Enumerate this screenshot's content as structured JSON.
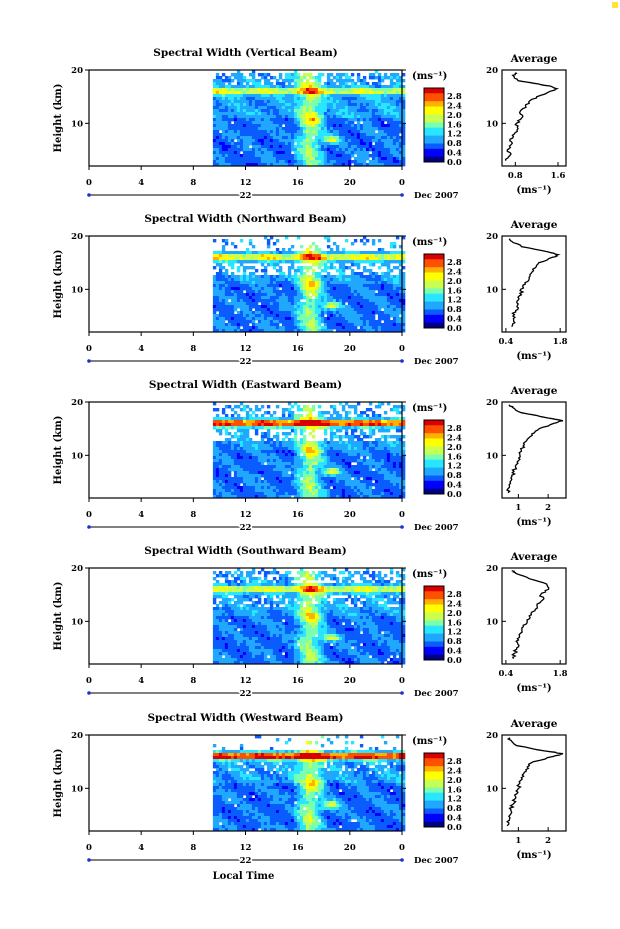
{
  "figure": {
    "bottom_xlabel": "Local Time",
    "colorbar_ticks": [
      "2.8",
      "2.4",
      "2.0",
      "1.6",
      "1.2",
      "0.8",
      "0.4",
      "0.0"
    ],
    "colorbar_unit": "(ms⁻¹)",
    "colormap": [
      "#000080",
      "#0000ff",
      "#0a5cff",
      "#20a8ff",
      "#28e6ff",
      "#7affb0",
      "#c8ff50",
      "#ffff00",
      "#ffb000",
      "#ff5000",
      "#d80000"
    ],
    "profile_title": "Average",
    "profile_unit": "(ms⁻¹)"
  },
  "chart_data": [
    {
      "type": "heatmap",
      "title": "Spectral Width (Vertical Beam)",
      "ylabel": "Height (km)",
      "yticks": [
        "20",
        "10"
      ],
      "xticks": [
        "0",
        "4",
        "8",
        "12",
        "16",
        "20",
        "0"
      ],
      "date_day": "22",
      "date_month": "Dec 2007",
      "xlim": [
        0,
        24
      ],
      "ylim": [
        2,
        20
      ],
      "data_start_hour": 9.5,
      "colorbar_range": [
        0,
        2.8
      ],
      "profile": {
        "title": "Average",
        "xticks": [
          "0.8",
          "1.6"
        ],
        "xtick_values": [
          0.8,
          1.6
        ],
        "xlim": [
          0.55,
          1.75
        ],
        "heights": [
          3,
          4,
          5,
          6,
          7,
          8,
          9,
          10,
          11,
          12,
          13,
          14,
          15,
          16,
          16.5,
          17,
          17.5,
          18,
          19,
          19.5
        ],
        "values": [
          0.62,
          0.7,
          0.65,
          0.72,
          0.7,
          0.78,
          0.85,
          0.82,
          0.92,
          0.88,
          1.0,
          1.05,
          1.2,
          1.45,
          1.58,
          1.45,
          1.15,
          0.85,
          0.75,
          0.8
        ]
      }
    },
    {
      "type": "heatmap",
      "title": "Spectral Width (Northward Beam)",
      "ylabel": "Height (km)",
      "yticks": [
        "20",
        "10"
      ],
      "xticks": [
        "0",
        "4",
        "8",
        "12",
        "16",
        "20",
        "0"
      ],
      "date_day": "22",
      "date_month": "Dec 2007",
      "xlim": [
        0,
        24
      ],
      "ylim": [
        2,
        20
      ],
      "data_start_hour": 9.5,
      "colorbar_range": [
        0,
        2.8
      ],
      "profile": {
        "title": "Average",
        "xticks": [
          "0.4",
          "1.8"
        ],
        "xtick_values": [
          0.4,
          1.8
        ],
        "xlim": [
          0.3,
          1.95
        ],
        "heights": [
          3,
          4,
          5,
          6,
          7,
          8,
          9,
          10,
          11,
          12,
          13,
          14,
          15,
          16,
          16.5,
          17,
          18,
          19,
          19.5
        ],
        "values": [
          0.55,
          0.6,
          0.58,
          0.65,
          0.7,
          0.72,
          0.8,
          0.78,
          0.9,
          1.0,
          1.05,
          1.15,
          1.25,
          1.6,
          1.75,
          1.5,
          0.8,
          0.55,
          0.5
        ]
      }
    },
    {
      "type": "heatmap",
      "title": "Spectral Width (Eastward Beam)",
      "ylabel": "Height (km)",
      "yticks": [
        "20",
        "10"
      ],
      "xticks": [
        "0",
        "4",
        "8",
        "12",
        "16",
        "20",
        "0"
      ],
      "date_day": "22",
      "date_month": "Dec 2007",
      "xlim": [
        0,
        24
      ],
      "ylim": [
        2,
        20
      ],
      "data_start_hour": 9.5,
      "colorbar_range": [
        0,
        2.8
      ],
      "profile": {
        "title": "Average",
        "xticks": [
          "1",
          "2"
        ],
        "xtick_values": [
          1,
          2
        ],
        "xlim": [
          0.45,
          2.6
        ],
        "heights": [
          3,
          4,
          5,
          6,
          7,
          8,
          9,
          10,
          11,
          12,
          13,
          14,
          15,
          16,
          16.5,
          17,
          18,
          19,
          19.5
        ],
        "values": [
          0.65,
          0.7,
          0.72,
          0.78,
          0.85,
          0.9,
          1.0,
          1.05,
          1.1,
          1.2,
          1.3,
          1.45,
          1.7,
          2.2,
          2.5,
          2.0,
          1.1,
          0.8,
          0.7
        ]
      }
    },
    {
      "type": "heatmap",
      "title": "Spectral Width (Southward Beam)",
      "ylabel": "Height (km)",
      "yticks": [
        "20",
        "10"
      ],
      "xticks": [
        "0",
        "4",
        "8",
        "12",
        "16",
        "20",
        "0"
      ],
      "date_day": "22",
      "date_month": "Dec 2007",
      "xlim": [
        0,
        24
      ],
      "ylim": [
        2,
        20
      ],
      "data_start_hour": 9.5,
      "colorbar_range": [
        0,
        2.8
      ],
      "profile": {
        "title": "Average",
        "xticks": [
          "0.4",
          "1.8"
        ],
        "xtick_values": [
          0.4,
          1.8
        ],
        "xlim": [
          0.3,
          1.95
        ],
        "heights": [
          3,
          4,
          5,
          6,
          7,
          8,
          9,
          10,
          11,
          12,
          13,
          14,
          15,
          16,
          17,
          18,
          19,
          19.5
        ],
        "values": [
          0.6,
          0.62,
          0.68,
          0.7,
          0.75,
          0.82,
          0.85,
          0.95,
          1.0,
          1.15,
          1.2,
          1.35,
          1.3,
          1.5,
          1.45,
          1.0,
          0.65,
          0.55
        ]
      }
    },
    {
      "type": "heatmap",
      "title": "Spectral Width (Westward Beam)",
      "ylabel": "Height (km)",
      "yticks": [
        "20",
        "10"
      ],
      "xticks": [
        "0",
        "4",
        "8",
        "12",
        "16",
        "20",
        "0"
      ],
      "date_day": "22",
      "date_month": "Dec 2007",
      "xlim": [
        0,
        24
      ],
      "ylim": [
        2,
        20
      ],
      "data_start_hour": 9.5,
      "colorbar_range": [
        0,
        2.8
      ],
      "profile": {
        "title": "Average",
        "xticks": [
          "1",
          "2"
        ],
        "xtick_values": [
          1,
          2
        ],
        "xlim": [
          0.45,
          2.6
        ],
        "heights": [
          3,
          4,
          5,
          6,
          7,
          8,
          9,
          10,
          11,
          12,
          13,
          14,
          15,
          16,
          16.5,
          17,
          18,
          19,
          19.5
        ],
        "values": [
          0.62,
          0.7,
          0.72,
          0.75,
          0.82,
          0.88,
          0.95,
          1.0,
          1.05,
          1.1,
          1.2,
          1.3,
          1.5,
          2.2,
          2.5,
          1.9,
          0.95,
          0.75,
          0.68
        ]
      }
    }
  ]
}
